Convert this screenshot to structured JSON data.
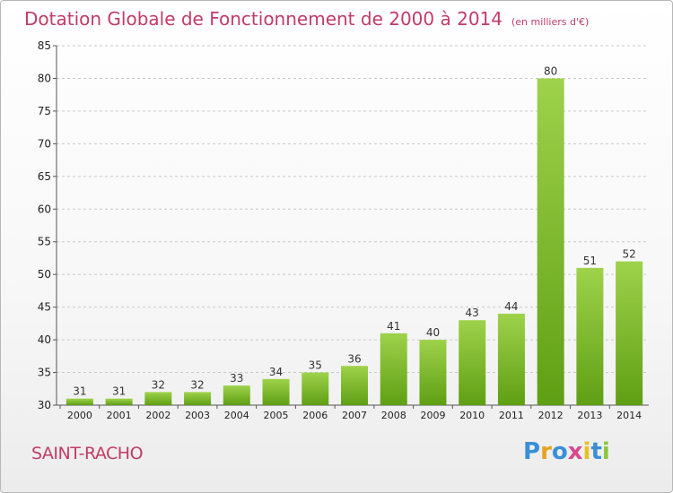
{
  "header": {
    "title": "Dotation Globale de Fonctionnement de 2000 à 2014",
    "subtitle": "(en milliers d'€)"
  },
  "footer": {
    "commune": "SAINT-RACHO",
    "logo_text": "Proxiti"
  },
  "colors": {
    "title": "#c23b67",
    "bar_light": "#9ed24b",
    "bar_dark": "#5f9f14",
    "grid": "#c8c8c8",
    "axis_text": "#222222"
  },
  "chart_data": {
    "type": "bar",
    "title": "Dotation Globale de Fonctionnement de 2000 à 2014",
    "subtitle": "(en milliers d'€)",
    "xlabel": "",
    "ylabel": "",
    "categories": [
      "2000",
      "2001",
      "2002",
      "2003",
      "2004",
      "2005",
      "2006",
      "2007",
      "2008",
      "2009",
      "2010",
      "2011",
      "2012",
      "2013",
      "2014"
    ],
    "values": [
      31,
      31,
      32,
      32,
      33,
      34,
      35,
      36,
      41,
      40,
      43,
      44,
      80,
      51,
      52
    ],
    "ylim": [
      30,
      85
    ],
    "yticks": [
      30,
      35,
      40,
      45,
      50,
      55,
      60,
      65,
      70,
      75,
      80,
      85
    ],
    "grid": true,
    "legend": "none"
  }
}
